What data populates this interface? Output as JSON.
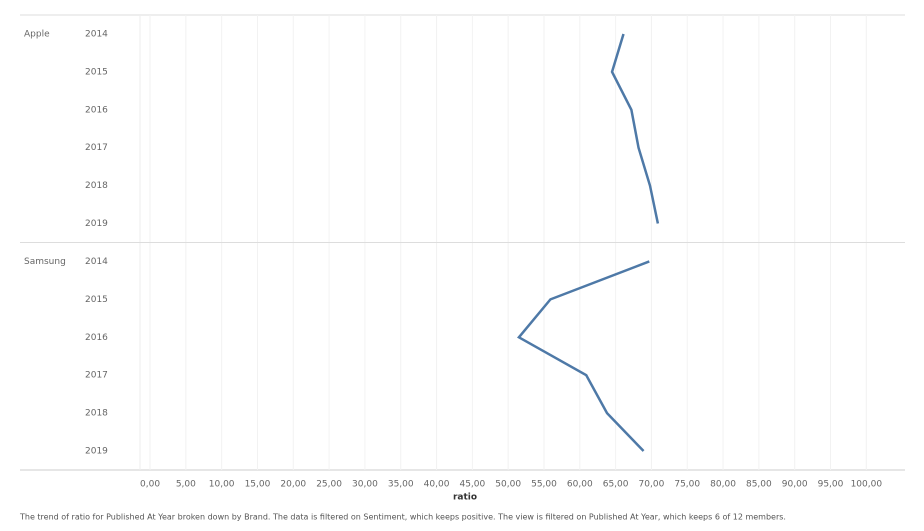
{
  "chart_data": {
    "type": "line",
    "orientation": "horizontal",
    "categories": [
      "2014",
      "2015",
      "2016",
      "2017",
      "2018",
      "2019"
    ],
    "series": [
      {
        "name": "Apple",
        "color": "#4e79a7",
        "values": [
          66.1,
          64.5,
          67.2,
          68.2,
          69.8,
          70.9
        ]
      },
      {
        "name": "Samsung",
        "color": "#4e79a7",
        "values": [
          69.7,
          55.9,
          51.5,
          60.9,
          63.8,
          68.9
        ]
      }
    ],
    "xlim": [
      -1.4,
      105.4
    ],
    "xticks": [
      {
        "value": 0,
        "label": "0,00"
      },
      {
        "value": 5,
        "label": "5,00"
      },
      {
        "value": 10,
        "label": "10,00"
      },
      {
        "value": 15,
        "label": "15,00"
      },
      {
        "value": 20,
        "label": "20,00"
      },
      {
        "value": 25,
        "label": "25,00"
      },
      {
        "value": 30,
        "label": "30,00"
      },
      {
        "value": 35,
        "label": "35,00"
      },
      {
        "value": 40,
        "label": "40,00"
      },
      {
        "value": 45,
        "label": "45,00"
      },
      {
        "value": 50,
        "label": "50,00"
      },
      {
        "value": 55,
        "label": "55,00"
      },
      {
        "value": 60,
        "label": "60,00"
      },
      {
        "value": 65,
        "label": "65,00"
      },
      {
        "value": 70,
        "label": "70,00"
      },
      {
        "value": 75,
        "label": "75,00"
      },
      {
        "value": 80,
        "label": "80,00"
      },
      {
        "value": 85,
        "label": "85,00"
      },
      {
        "value": 90,
        "label": "90,00"
      },
      {
        "value": 95,
        "label": "95,00"
      },
      {
        "value": 100,
        "label": "100,00"
      }
    ],
    "grid": true,
    "xlabel": "ratio",
    "caption": "The trend of ratio for Published At Year broken down by Brand. The data is filtered on Sentiment, which keeps positive. The view is filtered on Published At Year, which keeps 6 of 12 members."
  }
}
